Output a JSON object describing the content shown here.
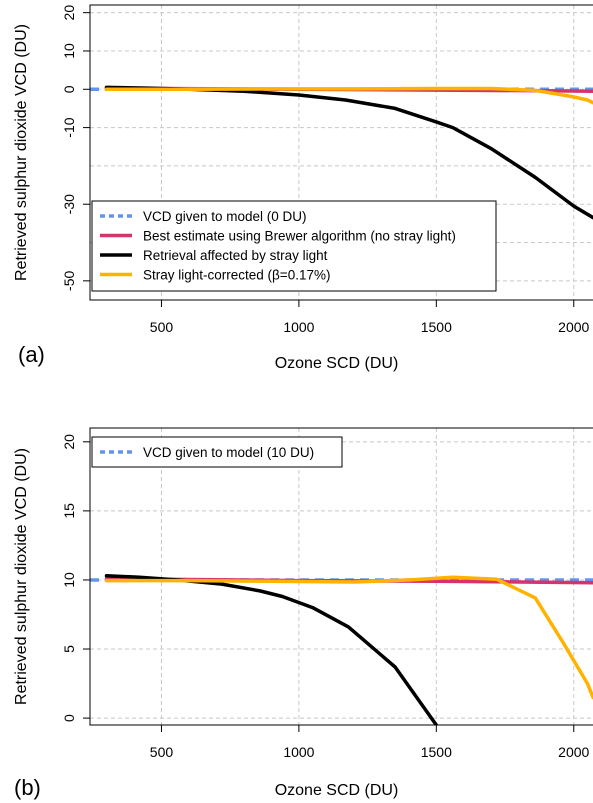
{
  "chart_data": [
    {
      "type": "line",
      "panel_label": "(a)",
      "xlabel": "Ozone SCD (DU)",
      "ylabel": "Retrieved sulphur dioxide VCD (DU)",
      "xlim": [
        240,
        2070
      ],
      "ylim": [
        -55,
        22
      ],
      "x_ticks": [
        500,
        1000,
        1500,
        2000
      ],
      "y_ticks": [
        20,
        10,
        0,
        -10,
        -30,
        -50
      ],
      "y_gridlines": [
        20,
        10,
        0,
        -10,
        -20,
        -30,
        -40,
        -50
      ],
      "grid": true,
      "legend_position": "bottom-left",
      "series": [
        {
          "name": "VCD given to model (0 DU)",
          "color": "#6495ed",
          "style": "dashed",
          "x": [
            240,
            2070
          ],
          "y": [
            0,
            0
          ]
        },
        {
          "name": "Best estimate using Brewer algorithm (no stray light)",
          "color": "#d6336c",
          "style": "solid",
          "x": [
            300,
            500,
            1000,
            1500,
            1900,
            2070
          ],
          "y": [
            0.3,
            0.2,
            0,
            -0.2,
            -0.4,
            -0.5
          ]
        },
        {
          "name": "Retrieval affected by stray light",
          "color": "#000000",
          "style": "solid",
          "x": [
            300,
            450,
            600,
            800,
            1000,
            1170,
            1350,
            1500,
            1560,
            1700,
            1860,
            2000,
            2070
          ],
          "y": [
            0.5,
            0.3,
            0,
            -0.5,
            -1.5,
            -2.8,
            -5,
            -8.5,
            -10,
            -15.5,
            -23,
            -30.5,
            -33.5
          ]
        },
        {
          "name": "Stray light-corrected (β=0.17%)",
          "color": "#ffb300",
          "style": "solid",
          "x": [
            300,
            600,
            900,
            1200,
            1500,
            1700,
            1860,
            2000,
            2050,
            2070
          ],
          "y": [
            0,
            0,
            0.1,
            0.1,
            0.2,
            0.2,
            -0.3,
            -2,
            -2.8,
            -3.5
          ]
        }
      ]
    },
    {
      "type": "line",
      "panel_label": "(b)",
      "xlabel": "Ozone SCD (DU)",
      "ylabel": "Retrieved sulphur dioxide VCD (DU)",
      "xlim": [
        240,
        2070
      ],
      "ylim": [
        -0.5,
        21
      ],
      "x_ticks": [
        500,
        1000,
        1500,
        2000
      ],
      "y_ticks": [
        0,
        5,
        10,
        15,
        20
      ],
      "y_gridlines": [
        0,
        5,
        10,
        15,
        20
      ],
      "grid": true,
      "legend_position": "top-left",
      "series": [
        {
          "name": "VCD given to model (10 DU)",
          "color": "#6495ed",
          "style": "dashed",
          "x": [
            240,
            2070
          ],
          "y": [
            10,
            10
          ]
        },
        {
          "color": "#d6336c",
          "style": "solid",
          "x": [
            300,
            500,
            1000,
            1500,
            1800,
            2070
          ],
          "y": [
            10.1,
            10.05,
            9.95,
            9.9,
            9.85,
            9.8
          ]
        },
        {
          "color": "#000000",
          "style": "solid",
          "x": [
            300,
            420,
            560,
            720,
            860,
            940,
            1050,
            1180,
            1350,
            1500
          ],
          "y": [
            10.3,
            10.2,
            10.0,
            9.7,
            9.2,
            8.8,
            8.0,
            6.6,
            3.7,
            -0.5
          ]
        },
        {
          "color": "#ffb300",
          "style": "solid",
          "x": [
            300,
            600,
            900,
            1200,
            1400,
            1560,
            1720,
            1860,
            1960,
            2050,
            2070
          ],
          "y": [
            9.95,
            9.95,
            9.9,
            9.85,
            10.0,
            10.2,
            10.05,
            8.7,
            5.5,
            2.5,
            1.5
          ]
        }
      ]
    }
  ]
}
